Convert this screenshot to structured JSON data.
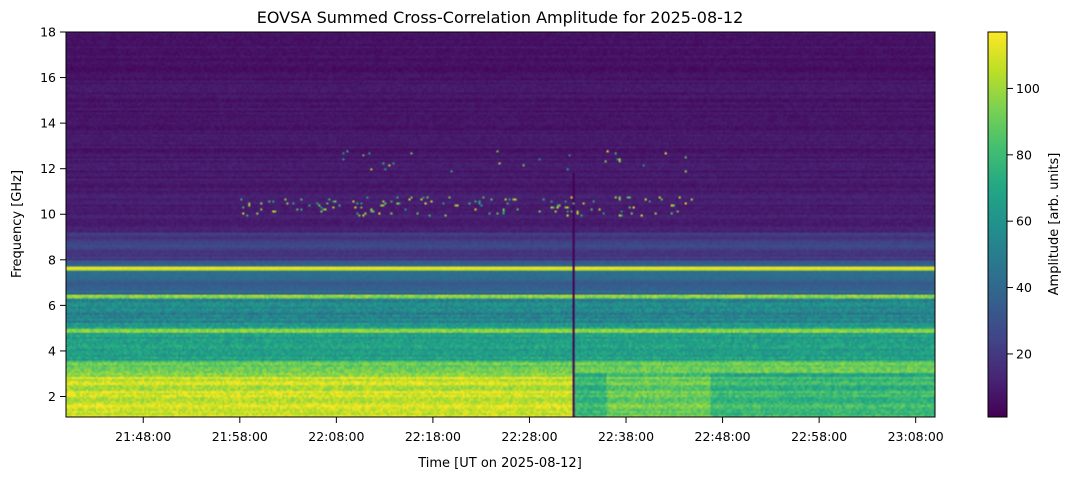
{
  "chart_data": {
    "type": "heatmap",
    "title": "EOVSA Summed Cross-Correlation Amplitude for 2025-08-12",
    "xlabel": "Time [UT on 2025-08-12]",
    "ylabel": "Frequency [GHz]",
    "colorbar_label": "Amplitude [arb. units]",
    "colormap": "viridis",
    "x_start": "21:40:00",
    "x_end": "23:10:00",
    "x_ticks": [
      "21:48:00",
      "21:58:00",
      "22:08:00",
      "22:18:00",
      "22:28:00",
      "22:38:00",
      "22:48:00",
      "22:58:00",
      "23:08:00"
    ],
    "y_ticks": [
      2,
      4,
      6,
      8,
      10,
      12,
      14,
      16,
      18
    ],
    "ylim": [
      1.1,
      18
    ],
    "clim": [
      1,
      117
    ],
    "colorbar_ticks": [
      20,
      40,
      60,
      80,
      100
    ],
    "features": {
      "gap_column_time": "22:32:30",
      "bursts_near_10_5_GHz": "21:56:00–22:48:00",
      "bursts_near_12_3_GHz": "22:06:00–22:44:00"
    }
  },
  "colors": {
    "viridis": [
      "#440154",
      "#482475",
      "#414487",
      "#355f8d",
      "#2a788e",
      "#21918c",
      "#22a884",
      "#44bf70",
      "#7ad151",
      "#bddf26",
      "#fde725"
    ]
  }
}
